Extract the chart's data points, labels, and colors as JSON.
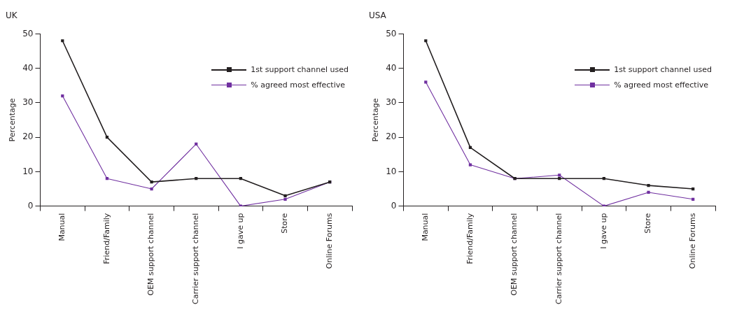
{
  "chart_data": [
    {
      "type": "line",
      "title": "UK",
      "ylabel": "Percentage",
      "categories": [
        "Manual",
        "Friend/Family",
        "OEM support channel",
        "Carrier support channel",
        "I gave up",
        "Store",
        "Online Forums"
      ],
      "series": [
        {
          "name": "1st support channel used",
          "color": "#231f20",
          "values": [
            48,
            20,
            7,
            8,
            8,
            3,
            7
          ]
        },
        {
          "name": "% agreed most effective",
          "color": "#7030a0",
          "values": [
            32,
            8,
            5,
            18,
            0,
            2,
            7
          ]
        }
      ],
      "ylim": [
        0,
        50
      ],
      "yticks": [
        0,
        10,
        20,
        30,
        40,
        50
      ],
      "grid": false,
      "legend": "top right",
      "marker": "square",
      "line_style": "solid"
    },
    {
      "type": "line",
      "title": "USA",
      "ylabel": "Percentage",
      "categories": [
        "Manual",
        "Friend/Family",
        "OEM support channel",
        "Carrier support channel",
        "I gave up",
        "Store",
        "Online Forums"
      ],
      "series": [
        {
          "name": "1st support channel used",
          "color": "#231f20",
          "values": [
            48,
            17,
            8,
            8,
            8,
            6,
            5
          ]
        },
        {
          "name": "% agreed most effective",
          "color": "#7030a0",
          "values": [
            36,
            12,
            8,
            9,
            0,
            4,
            2
          ]
        }
      ],
      "ylim": [
        0,
        50
      ],
      "yticks": [
        0,
        10,
        20,
        30,
        40,
        50
      ],
      "grid": false,
      "legend": "top right",
      "marker": "square",
      "line_style": "solid"
    }
  ]
}
